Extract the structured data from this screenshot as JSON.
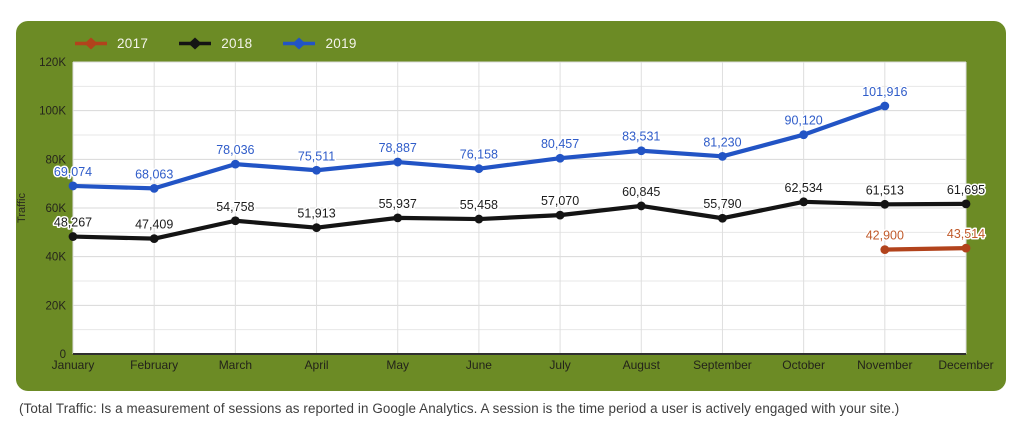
{
  "caption": "(Total Traffic: Is a measurement of sessions as reported in Google Analytics. A session is the time period a user is actively engaged with your site.)",
  "panel": {
    "background_color": "#6c8b25",
    "plot_background_color": "#ffffff"
  },
  "legend": {
    "position": "top-left",
    "text_color": "#f3f3ea"
  },
  "chart_data": {
    "type": "line",
    "title": "",
    "xlabel": "",
    "ylabel": "Traffic",
    "categories": [
      "January",
      "February",
      "March",
      "April",
      "May",
      "June",
      "July",
      "August",
      "September",
      "October",
      "November",
      "December"
    ],
    "ylim": [
      0,
      120000
    ],
    "y_major_step": 20000,
    "y_minor_step": 10000,
    "y_tick_labels": [
      "0",
      "20K",
      "40K",
      "60K",
      "80K",
      "100K",
      "120K"
    ],
    "grid": "on",
    "legend_position": "top-left",
    "series": [
      {
        "name": "2017",
        "color": "#b2431c",
        "label_color": "#c05a2b",
        "values": [
          null,
          null,
          null,
          null,
          null,
          null,
          null,
          null,
          null,
          null,
          42900,
          43514
        ]
      },
      {
        "name": "2018",
        "color": "#141414",
        "label_color": "#1c1c1c",
        "values": [
          48267,
          47409,
          54758,
          51913,
          55937,
          55458,
          57070,
          60845,
          55790,
          62534,
          61513,
          61695
        ]
      },
      {
        "name": "2019",
        "color": "#2254c5",
        "label_color": "#2f5cc9",
        "values": [
          69074,
          68063,
          78036,
          75511,
          78887,
          76158,
          80457,
          83531,
          81230,
          90120,
          101916,
          null
        ]
      }
    ]
  }
}
